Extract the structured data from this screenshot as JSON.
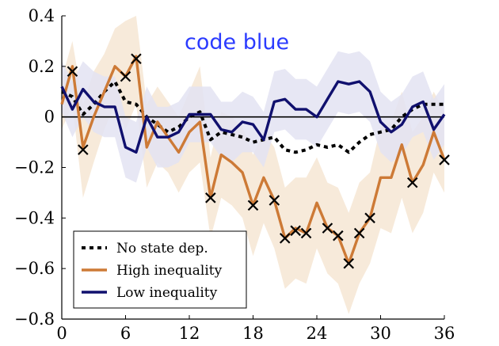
{
  "chart_data": {
    "type": "line",
    "annotation": "code blue",
    "xlim": [
      0,
      36
    ],
    "ylim": [
      -0.8,
      0.4
    ],
    "x_ticks": [
      0,
      6,
      12,
      18,
      24,
      30,
      36
    ],
    "y_ticks": [
      0.4,
      0.2,
      0,
      -0.2,
      -0.4,
      -0.6,
      -0.8
    ],
    "x_tick_labels": [
      "0",
      "6",
      "12",
      "18",
      "24",
      "30",
      "36"
    ],
    "y_tick_labels": [
      "0.4",
      "0.2",
      "0",
      "−0.2",
      "−0.4",
      "−0.6",
      "−0.8"
    ],
    "zero_line": true,
    "legend_position": "bottom-left",
    "x": [
      0,
      1,
      2,
      3,
      4,
      5,
      6,
      7,
      8,
      9,
      10,
      11,
      12,
      13,
      14,
      15,
      16,
      17,
      18,
      19,
      20,
      21,
      22,
      23,
      24,
      25,
      26,
      27,
      28,
      29,
      30,
      31,
      32,
      33,
      34,
      35,
      36
    ],
    "series": [
      {
        "name": "No state dep.",
        "style": "dotted",
        "color": "#000000",
        "values": [
          0.1,
          0.08,
          0.01,
          0.05,
          0.1,
          0.14,
          0.06,
          0.05,
          0.0,
          -0.03,
          -0.06,
          -0.04,
          0.0,
          0.02,
          -0.09,
          -0.06,
          -0.07,
          -0.08,
          -0.1,
          -0.09,
          -0.08,
          -0.13,
          -0.14,
          -0.13,
          -0.11,
          -0.12,
          -0.11,
          -0.14,
          -0.1,
          -0.07,
          -0.06,
          -0.05,
          0.0,
          0.03,
          0.05,
          0.05,
          0.05
        ]
      },
      {
        "name": "High inequality",
        "style": "solid",
        "color": "#cd7a36",
        "band_color": "#f6e6d4",
        "values": [
          0.05,
          0.2,
          -0.12,
          0.0,
          0.1,
          0.2,
          0.16,
          0.24,
          -0.12,
          -0.02,
          -0.08,
          -0.14,
          -0.06,
          -0.02,
          -0.32,
          -0.15,
          -0.18,
          -0.22,
          -0.35,
          -0.24,
          -0.33,
          -0.48,
          -0.44,
          -0.46,
          -0.34,
          -0.44,
          -0.47,
          -0.58,
          -0.46,
          -0.4,
          -0.24,
          -0.24,
          -0.11,
          -0.26,
          -0.19,
          -0.06,
          -0.17
        ],
        "band_lower": [
          -0.05,
          0.05,
          -0.32,
          -0.18,
          -0.05,
          0.05,
          -0.05,
          0.05,
          -0.28,
          -0.18,
          -0.22,
          -0.3,
          -0.22,
          -0.18,
          -0.48,
          -0.32,
          -0.35,
          -0.4,
          -0.55,
          -0.42,
          -0.52,
          -0.68,
          -0.64,
          -0.66,
          -0.52,
          -0.62,
          -0.66,
          -0.78,
          -0.66,
          -0.58,
          -0.44,
          -0.46,
          -0.32,
          -0.46,
          -0.38,
          -0.22,
          -0.3
        ],
        "band_upper": [
          0.15,
          0.3,
          0.05,
          0.18,
          0.25,
          0.35,
          0.38,
          0.4,
          0.05,
          0.12,
          0.06,
          0.0,
          0.1,
          0.2,
          -0.16,
          0.02,
          0.0,
          -0.04,
          -0.15,
          -0.06,
          -0.12,
          -0.28,
          -0.24,
          -0.24,
          -0.16,
          -0.26,
          -0.28,
          -0.38,
          -0.26,
          -0.22,
          -0.04,
          -0.02,
          0.1,
          -0.06,
          0.0,
          0.1,
          0.02
        ]
      },
      {
        "name": "Low inequality",
        "style": "solid",
        "color": "#10106e",
        "band_color": "#e3e3f2",
        "values": [
          0.12,
          0.03,
          0.11,
          0.06,
          0.04,
          0.04,
          -0.12,
          -0.14,
          0.0,
          -0.08,
          -0.08,
          -0.06,
          0.01,
          0.01,
          0.01,
          -0.05,
          -0.06,
          -0.02,
          -0.03,
          -0.09,
          0.06,
          0.07,
          0.03,
          0.03,
          0.0,
          0.07,
          0.14,
          0.13,
          0.14,
          0.1,
          -0.02,
          -0.06,
          -0.03,
          0.04,
          0.06,
          -0.05,
          0.01
        ],
        "band_lower": [
          0.02,
          -0.08,
          0.0,
          -0.06,
          -0.08,
          -0.08,
          -0.24,
          -0.26,
          -0.12,
          -0.2,
          -0.2,
          -0.18,
          -0.1,
          -0.1,
          -0.1,
          -0.16,
          -0.18,
          -0.14,
          -0.14,
          -0.2,
          -0.06,
          -0.05,
          -0.09,
          -0.09,
          -0.12,
          -0.05,
          0.02,
          0.01,
          0.02,
          -0.02,
          -0.14,
          -0.18,
          -0.15,
          -0.08,
          -0.06,
          -0.17,
          -0.11
        ],
        "band_upper": [
          0.22,
          0.14,
          0.22,
          0.18,
          0.16,
          0.16,
          0.0,
          -0.02,
          0.12,
          0.04,
          0.04,
          0.06,
          0.12,
          0.12,
          0.12,
          0.06,
          0.06,
          0.1,
          0.08,
          0.02,
          0.18,
          0.19,
          0.15,
          0.15,
          0.12,
          0.19,
          0.26,
          0.25,
          0.26,
          0.22,
          0.1,
          0.06,
          0.09,
          0.16,
          0.18,
          0.07,
          0.13
        ]
      }
    ],
    "significant_markers": [
      {
        "x": 1,
        "y": 0.18
      },
      {
        "x": 2,
        "y": -0.13
      },
      {
        "x": 6,
        "y": 0.16
      },
      {
        "x": 7,
        "y": 0.23
      },
      {
        "x": 14,
        "y": -0.32
      },
      {
        "x": 18,
        "y": -0.35
      },
      {
        "x": 20,
        "y": -0.33
      },
      {
        "x": 21,
        "y": -0.48
      },
      {
        "x": 22,
        "y": -0.45
      },
      {
        "x": 23,
        "y": -0.46
      },
      {
        "x": 25,
        "y": -0.44
      },
      {
        "x": 26,
        "y": -0.47
      },
      {
        "x": 27,
        "y": -0.58
      },
      {
        "x": 28,
        "y": -0.46
      },
      {
        "x": 29,
        "y": -0.4
      },
      {
        "x": 33,
        "y": -0.26
      },
      {
        "x": 36,
        "y": -0.17
      }
    ]
  }
}
